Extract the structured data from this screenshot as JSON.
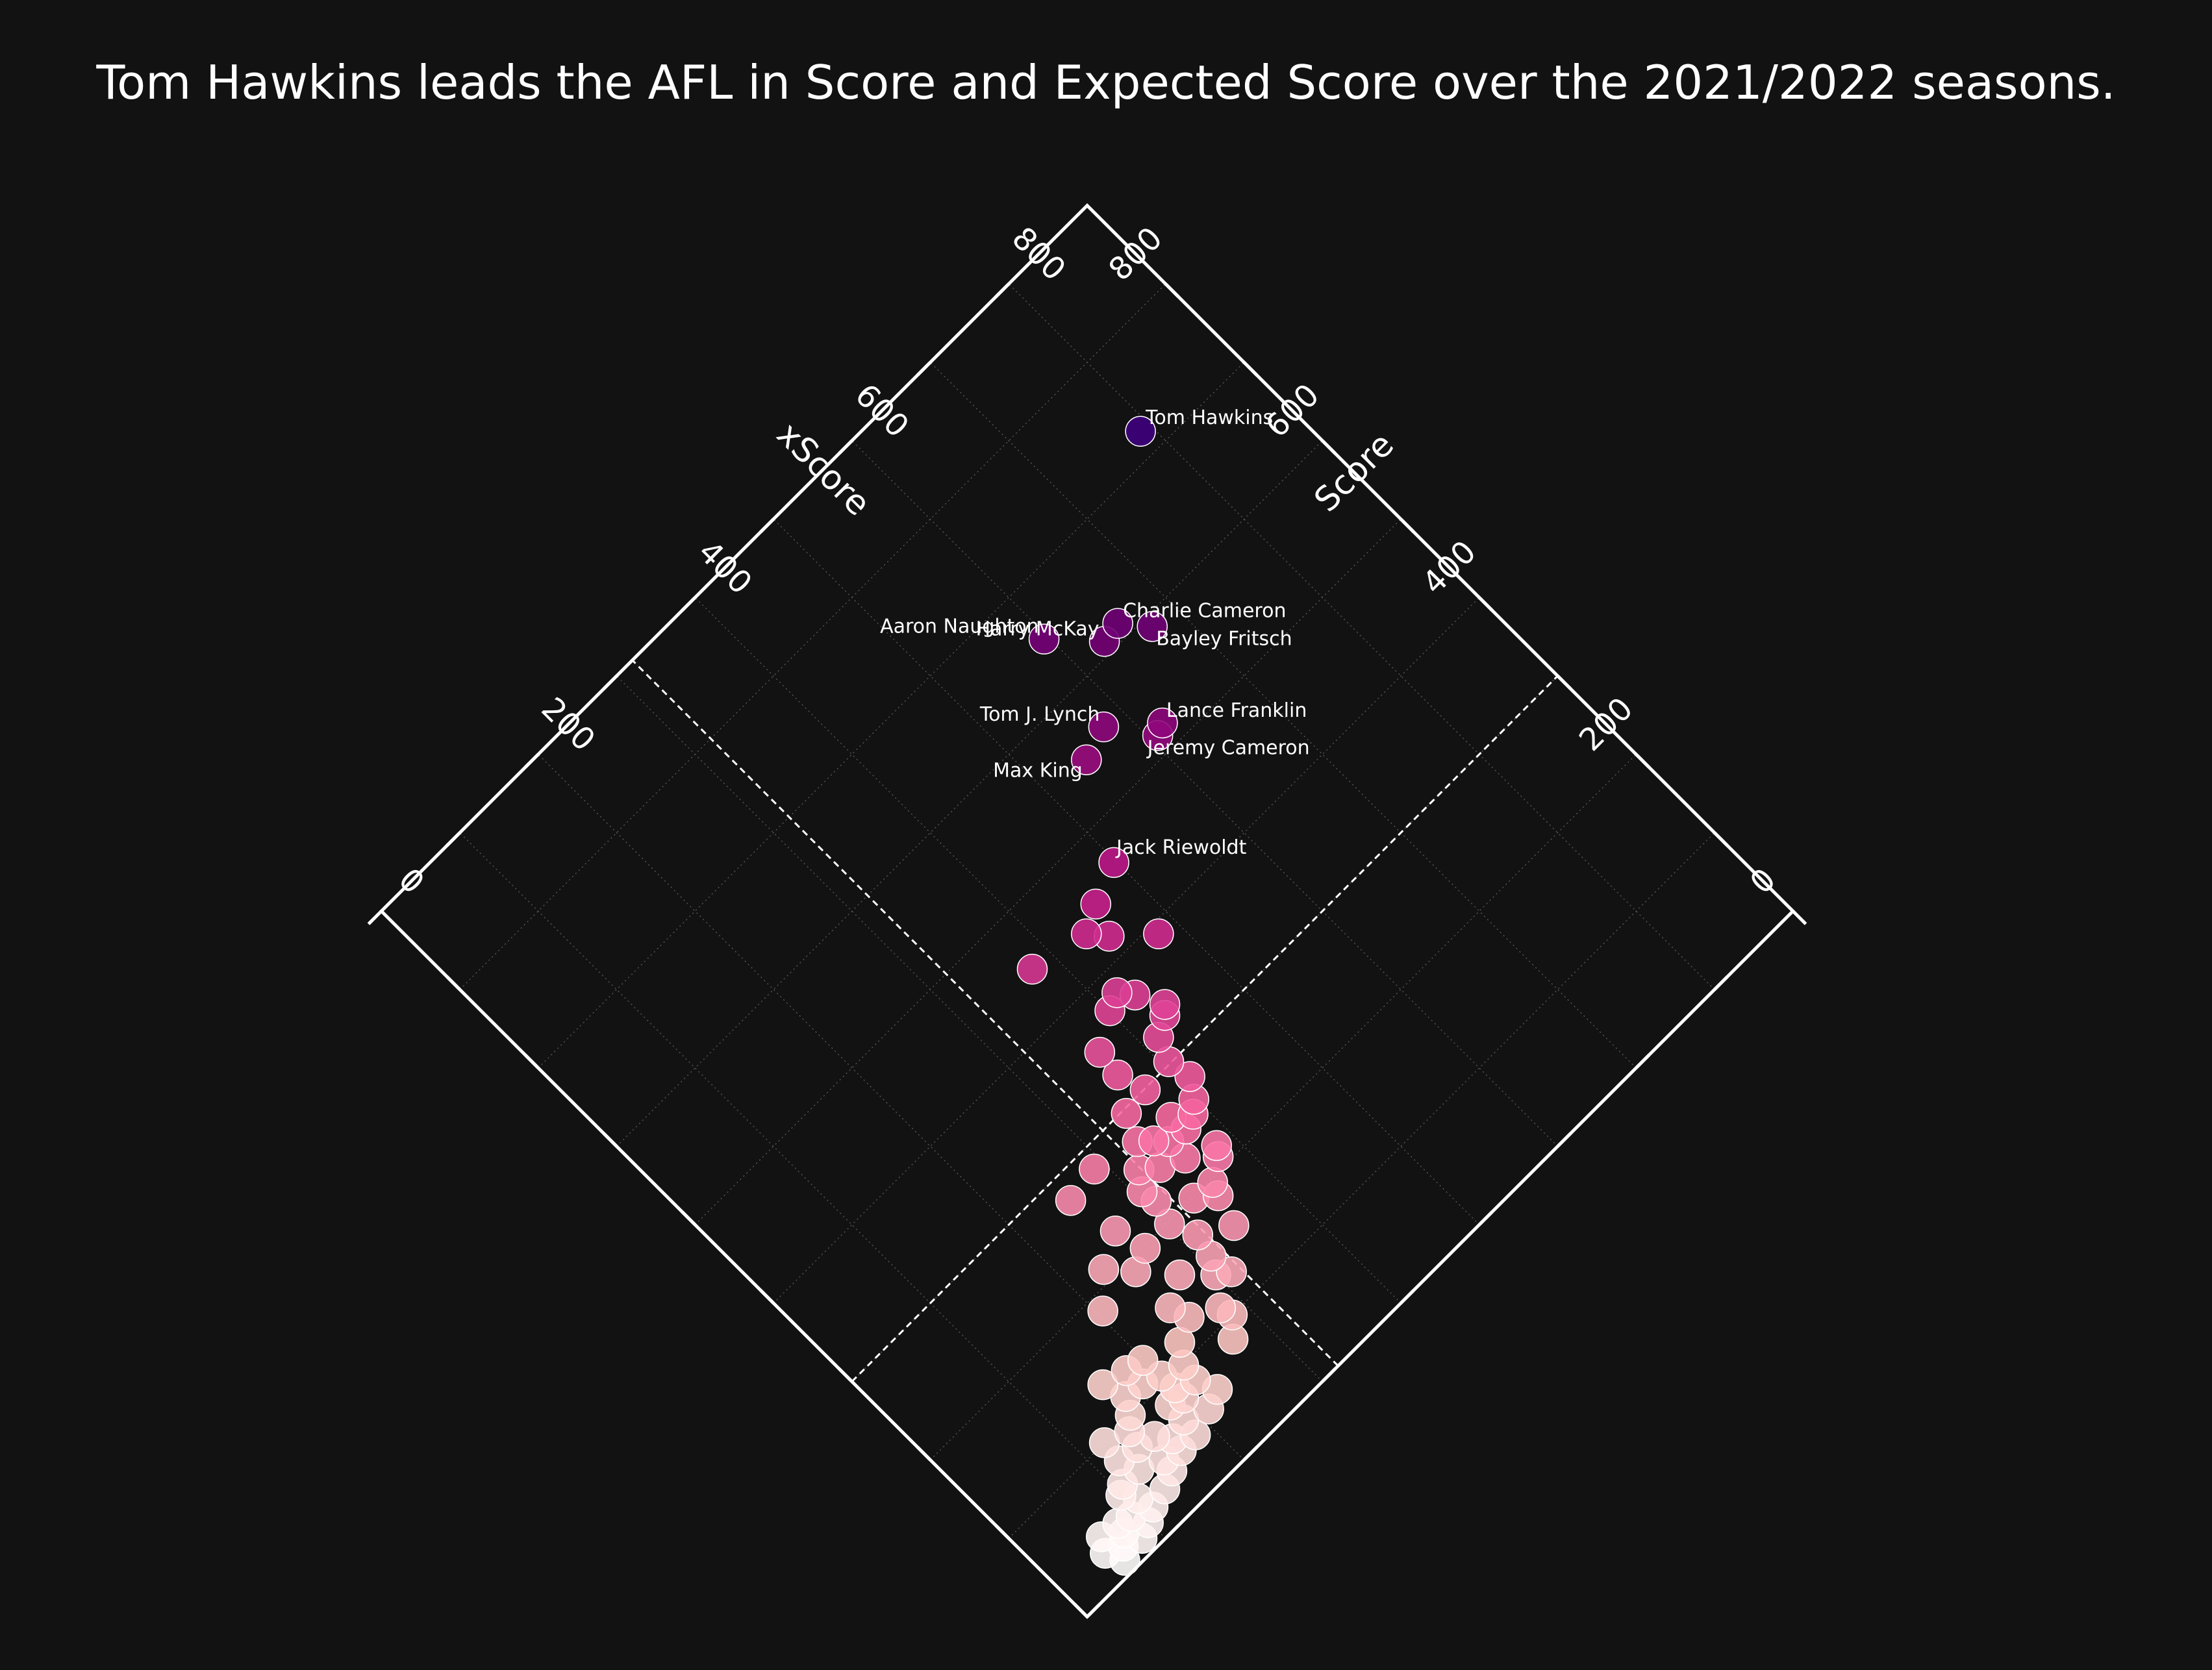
{
  "title": "Tom Hawkins leads the AFL in Score and Expected Score over the 2021/2022 seasons.",
  "chart_data": {
    "type": "scatter",
    "title": "Tom Hawkins leads the AFL in Score and Expected Score over the 2021/2022 seasons.",
    "x_axis": {
      "label": "Score",
      "range": [
        0,
        900
      ],
      "ticks": [
        0,
        200,
        400,
        600,
        800
      ]
    },
    "y_axis": {
      "label": "xScore",
      "range": [
        0,
        900
      ],
      "ticks": [
        0,
        200,
        400,
        600,
        800
      ]
    },
    "tick_labels": [
      "0",
      "200",
      "400",
      "600",
      "800"
    ],
    "reference_lines": {
      "score_avg": 300,
      "xscore_avg": 320
    },
    "grid": true,
    "color_scale": [
      "#ffffff",
      "#fcc5c0",
      "#f768a1",
      "#c51b8a",
      "#7a0177",
      "#3f007d"
    ],
    "labeled_points": [
      {
        "name": "Tom Hawkins",
        "score": 722,
        "xscore": 790
      },
      {
        "name": "Aaron Naughton",
        "score": 651,
        "xscore": 596
      },
      {
        "name": "Harry McKay",
        "score": 611,
        "xscore": 633
      },
      {
        "name": "Charlie Cameron",
        "score": 614,
        "xscore": 653
      },
      {
        "name": "Bayley Fritsch",
        "score": 590,
        "xscore": 673
      },
      {
        "name": "Tom J. Lynch",
        "score": 557,
        "xscore": 578
      },
      {
        "name": "Max King",
        "score": 547,
        "xscore": 546
      },
      {
        "name": "Lance Franklin",
        "score": 522,
        "xscore": 618
      },
      {
        "name": "Jeremy Cameron",
        "score": 517,
        "xscore": 607
      },
      {
        "name": "Jack Riewoldt",
        "score": 464,
        "xscore": 498
      }
    ],
    "points": [
      {
        "score": 390,
        "xscore": 481
      },
      {
        "score": 449,
        "xscore": 460
      },
      {
        "score": 436,
        "xscore": 435
      },
      {
        "score": 420,
        "xscore": 448
      },
      {
        "score": 448,
        "xscore": 378
      },
      {
        "score": 379,
        "xscore": 417
      },
      {
        "score": 372,
        "xscore": 401
      },
      {
        "score": 366,
        "xscore": 427
      },
      {
        "score": 341,
        "xscore": 440
      },
      {
        "score": 334,
        "xscore": 433
      },
      {
        "score": 324,
        "xscore": 415
      },
      {
        "score": 352,
        "xscore": 368
      },
      {
        "score": 302,
        "xscore": 406
      },
      {
        "score": 326,
        "xscore": 365
      },
      {
        "score": 279,
        "xscore": 410
      },
      {
        "score": 299,
        "xscore": 373
      },
      {
        "score": 296,
        "xscore": 346
      },
      {
        "score": 262,
        "xscore": 398
      },
      {
        "score": 265,
        "xscore": 372
      },
      {
        "score": 253,
        "xscore": 388
      },
      {
        "score": 271,
        "xscore": 335
      },
      {
        "score": 261,
        "xscore": 346
      },
      {
        "score": 251,
        "xscore": 355
      },
      {
        "score": 248,
        "xscore": 374
      },
      {
        "score": 281,
        "xscore": 290
      },
      {
        "score": 252,
        "xscore": 318
      },
      {
        "score": 230,
        "xscore": 355
      },
      {
        "score": 218,
        "xscore": 383
      },
      {
        "score": 240,
        "xscore": 333
      },
      {
        "score": 210,
        "xscore": 377
      },
      {
        "score": 276,
        "xscore": 255
      },
      {
        "score": 236,
        "xscore": 306
      },
      {
        "score": 197,
        "xscore": 357
      },
      {
        "score": 221,
        "xscore": 309
      },
      {
        "score": 185,
        "xscore": 352
      },
      {
        "score": 199,
        "xscore": 335
      },
      {
        "score": 198,
        "xscore": 303
      },
      {
        "score": 228,
        "xscore": 264
      },
      {
        "score": 173,
        "xscore": 314
      },
      {
        "score": 156,
        "xscore": 343
      },
      {
        "score": 198,
        "xscore": 272
      },
      {
        "score": 151,
        "xscore": 309
      },
      {
        "score": 211,
        "xscore": 232
      },
      {
        "score": 189,
        "xscore": 251
      },
      {
        "score": 159,
        "xscore": 277
      },
      {
        "score": 136,
        "xscore": 300
      },
      {
        "score": 128,
        "xscore": 312
      },
      {
        "score": 185,
        "xscore": 205
      },
      {
        "score": 144,
        "xscore": 250
      },
      {
        "score": 112,
        "xscore": 282
      },
      {
        "score": 126,
        "xscore": 256
      },
      {
        "score": 100,
        "xscore": 285
      },
      {
        "score": 116,
        "xscore": 234
      },
      {
        "score": 84,
        "xscore": 270
      },
      {
        "score": 128,
        "xscore": 199
      },
      {
        "score": 99,
        "xscore": 222
      },
      {
        "score": 132,
        "xscore": 182
      },
      {
        "score": 106,
        "xscore": 201
      },
      {
        "score": 82,
        "xscore": 220
      },
      {
        "score": 138,
        "xscore": 158
      },
      {
        "score": 113,
        "xscore": 184
      },
      {
        "score": 90,
        "xscore": 202
      },
      {
        "score": 62,
        "xscore": 228
      },
      {
        "score": 116,
        "xscore": 165
      },
      {
        "score": 78,
        "xscore": 201
      },
      {
        "score": 82,
        "xscore": 188
      },
      {
        "score": 55,
        "xscore": 210
      },
      {
        "score": 101,
        "xscore": 156
      },
      {
        "score": 64,
        "xscore": 187
      },
      {
        "score": 91,
        "xscore": 145
      },
      {
        "score": 47,
        "xscore": 185
      },
      {
        "score": 100,
        "xscore": 122
      },
      {
        "score": 72,
        "xscore": 158
      },
      {
        "score": 59,
        "xscore": 168
      },
      {
        "score": 76,
        "xscore": 140
      },
      {
        "score": 46,
        "xscore": 166
      },
      {
        "score": 79,
        "xscore": 120
      },
      {
        "score": 51,
        "xscore": 149
      },
      {
        "score": 61,
        "xscore": 127
      },
      {
        "score": 39,
        "xscore": 147
      },
      {
        "score": 62,
        "xscore": 107
      },
      {
        "score": 32,
        "xscore": 131
      },
      {
        "score": 56,
        "xscore": 99
      },
      {
        "score": 43,
        "xscore": 108
      },
      {
        "score": 28,
        "xscore": 112
      },
      {
        "score": 36,
        "xscore": 92
      },
      {
        "score": 21,
        "xscore": 99
      },
      {
        "score": 30,
        "xscore": 77
      },
      {
        "score": 15,
        "xscore": 85
      },
      {
        "score": 42,
        "xscore": 60
      },
      {
        "score": 22,
        "xscore": 68
      },
      {
        "score": 29,
        "xscore": 52
      },
      {
        "score": 12,
        "xscore": 60
      },
      {
        "score": 40,
        "xscore": 79
      }
    ]
  }
}
